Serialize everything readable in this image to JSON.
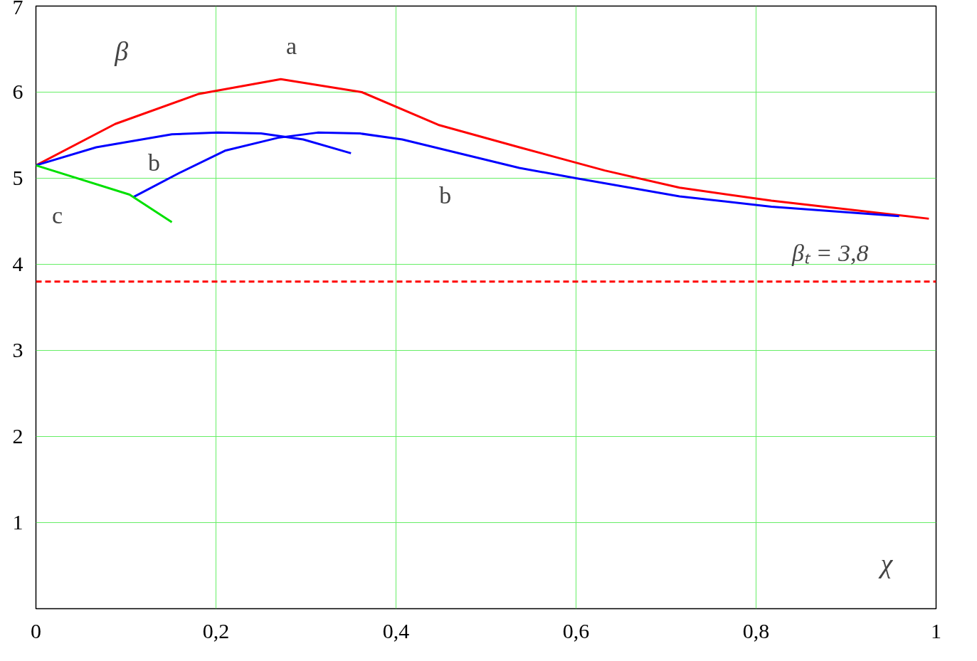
{
  "chart_data": {
    "type": "line",
    "xlabel": "χ",
    "ylabel": "β",
    "xlim": [
      0,
      1
    ],
    "ylim": [
      0,
      7
    ],
    "xticks": [
      {
        "value": 0,
        "label": "0"
      },
      {
        "value": 0.2,
        "label": "0,2"
      },
      {
        "value": 0.4,
        "label": "0,4"
      },
      {
        "value": 0.6,
        "label": "0,6"
      },
      {
        "value": 0.8,
        "label": "0,8"
      },
      {
        "value": 1,
        "label": "1"
      }
    ],
    "yticks": [
      1,
      2,
      3,
      4,
      5,
      6,
      7
    ],
    "grid": true,
    "line_style": "solid",
    "series": [
      {
        "name": "a",
        "color": "#ff0000",
        "x": [
          0,
          0.088,
          0.181,
          0.272,
          0.362,
          0.447,
          0.537,
          0.632,
          0.715,
          0.817,
          0.992
        ],
        "values": [
          5.15,
          5.63,
          5.98,
          6.15,
          6.0,
          5.62,
          5.36,
          5.09,
          4.89,
          4.74,
          4.53
        ]
      },
      {
        "name": "b",
        "color": "#0000ff",
        "x": [
          0,
          0.067,
          0.151,
          0.202,
          0.25,
          0.297,
          0.35
        ],
        "values": [
          5.15,
          5.36,
          5.51,
          5.53,
          5.52,
          5.45,
          5.29
        ]
      },
      {
        "name": "b",
        "color": "#0000ff",
        "x": [
          0.108,
          0.159,
          0.21,
          0.269,
          0.313,
          0.36,
          0.407,
          0.537,
          0.6,
          0.715,
          0.817,
          0.959
        ],
        "values": [
          4.78,
          5.06,
          5.32,
          5.47,
          5.53,
          5.52,
          5.45,
          5.12,
          5.0,
          4.79,
          4.67,
          4.56
        ]
      },
      {
        "name": "c",
        "color": "#00e000",
        "x": [
          0,
          0.104,
          0.151
        ],
        "values": [
          5.15,
          4.81,
          4.49
        ]
      }
    ],
    "ref_lines": [
      {
        "axis": "y",
        "value": 3.8,
        "label": "βₜ = 3,8",
        "color": "#ff0000",
        "line_style": "dashed"
      }
    ]
  }
}
